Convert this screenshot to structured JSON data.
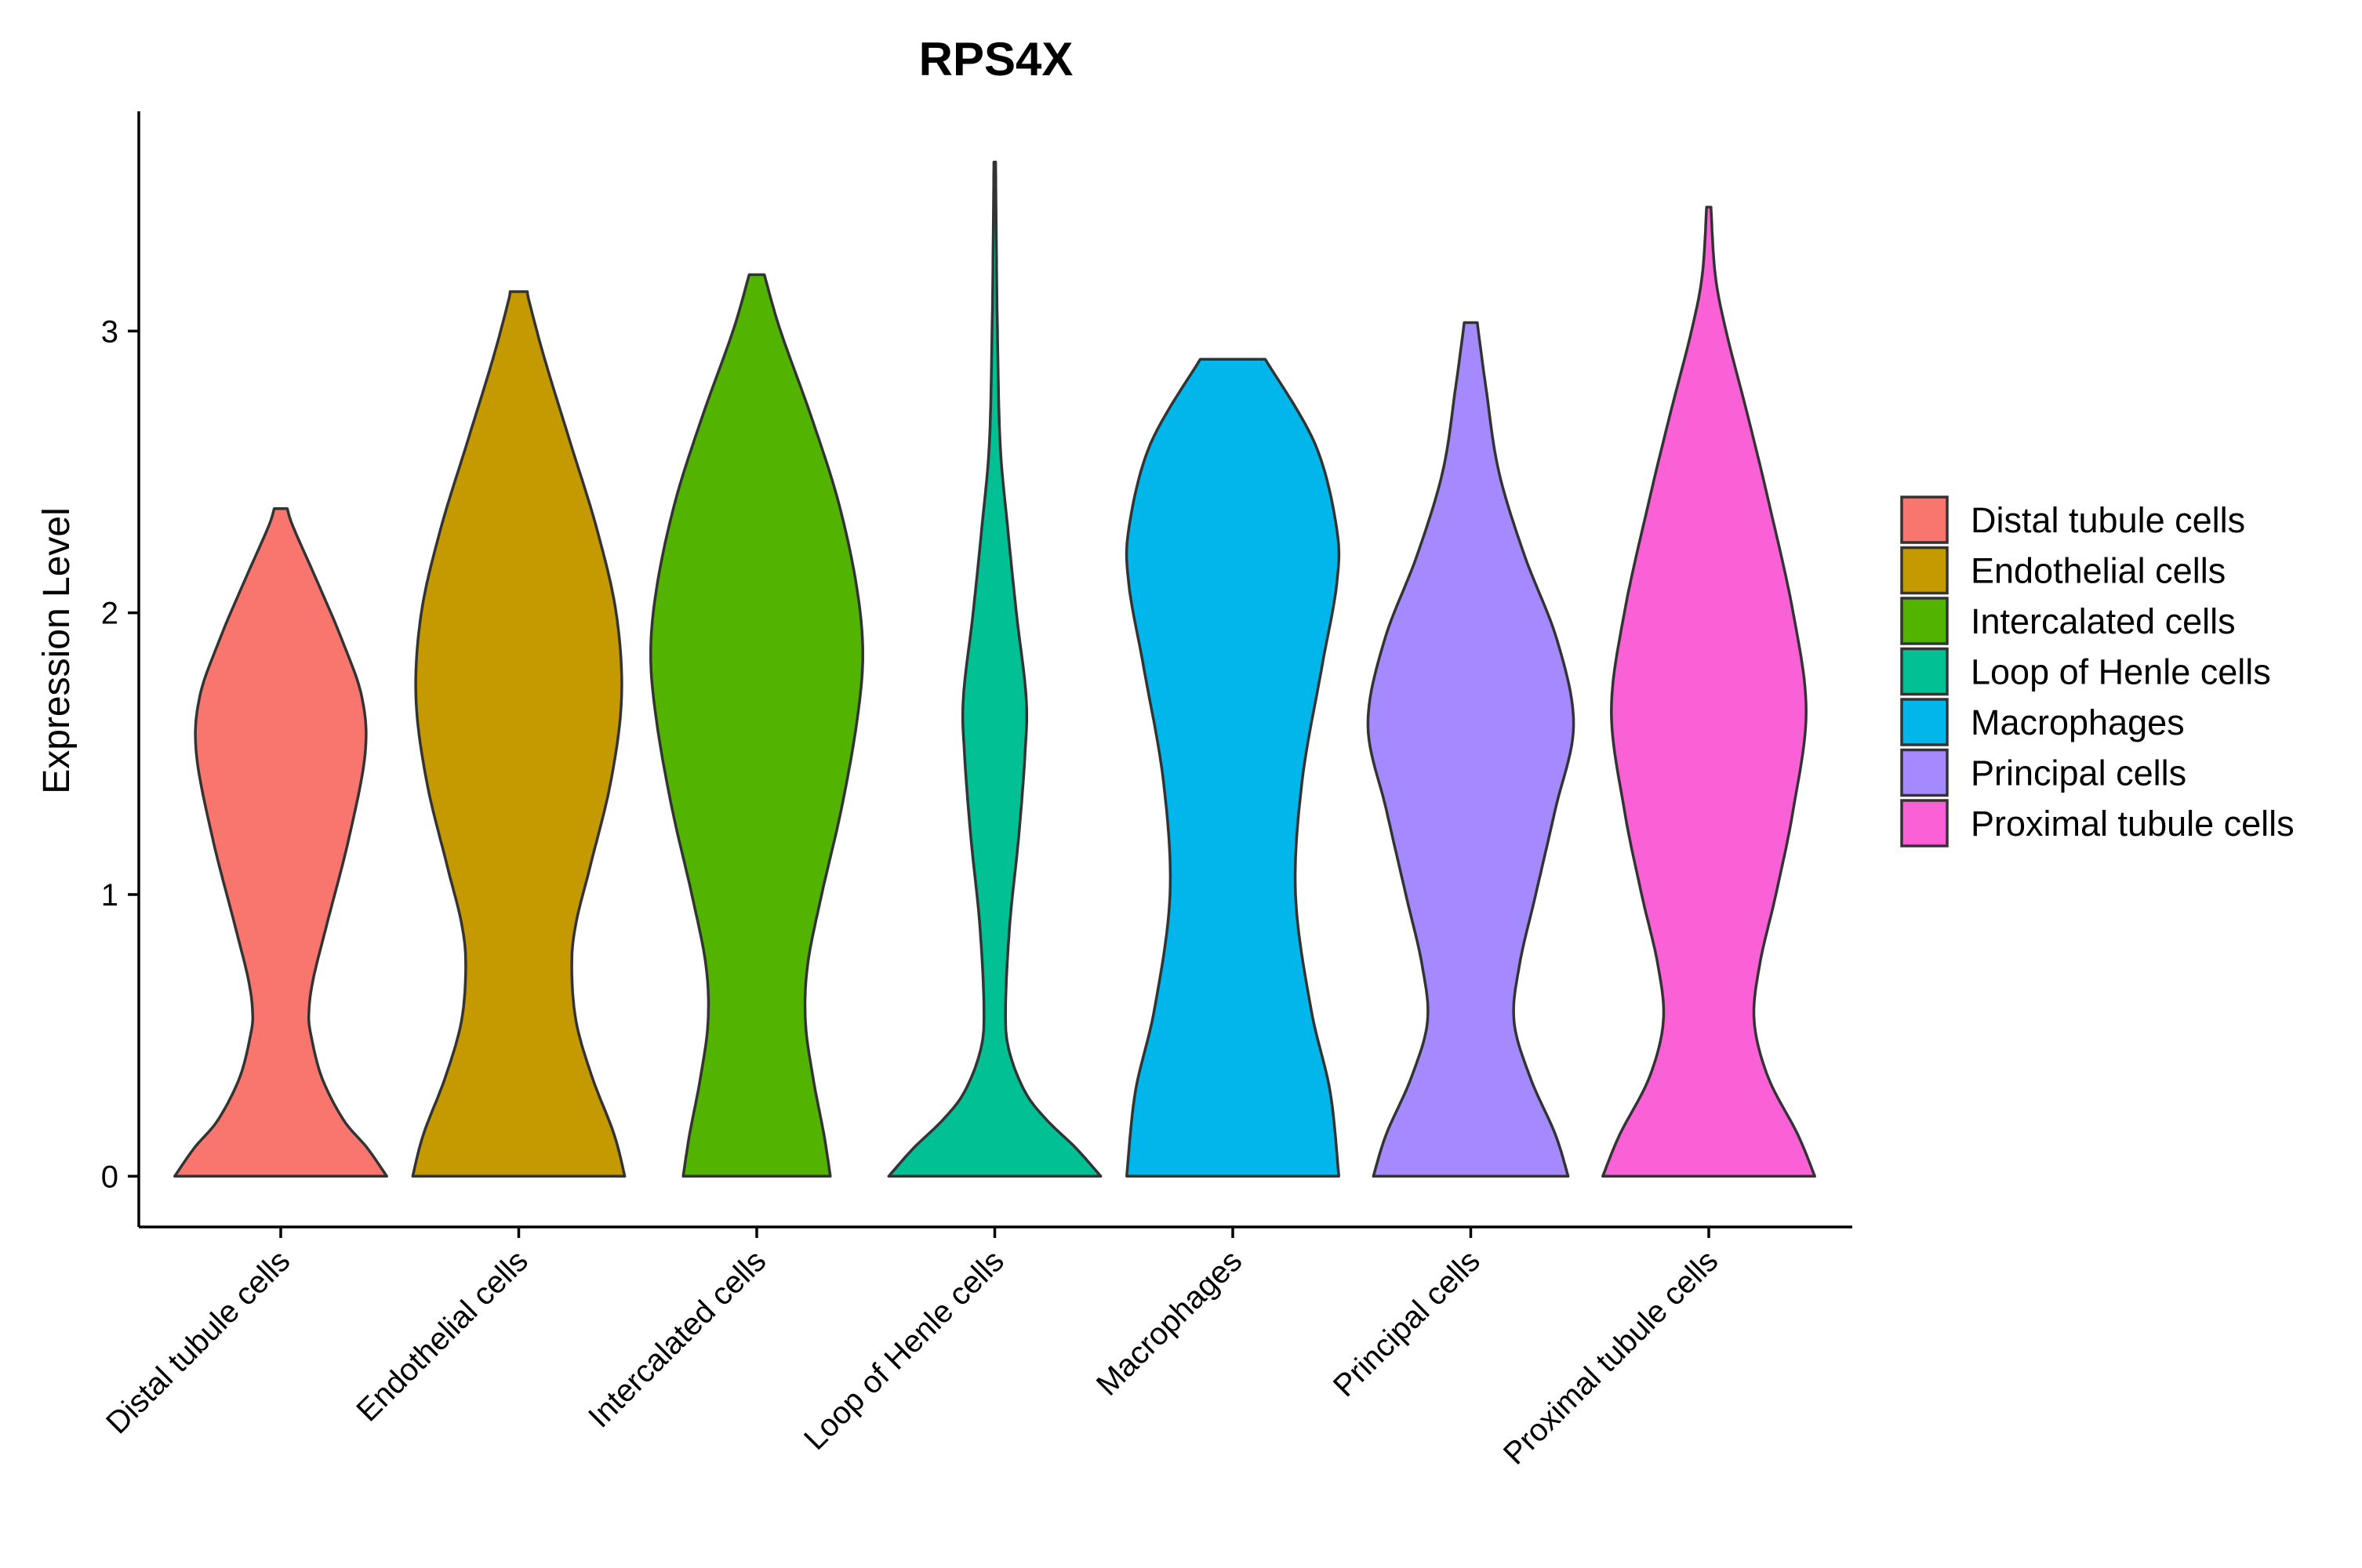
{
  "chart_data": {
    "type": "violin",
    "title": "RPS4X",
    "xlabel": "",
    "ylabel": "Expression Level",
    "ylim": [
      -0.18,
      3.78
    ],
    "yticks": [
      0,
      1,
      2,
      3
    ],
    "ytick_labels": [
      "0",
      "1",
      "2",
      "3"
    ],
    "legend_position": "right",
    "categories": [
      "Distal tubule cells",
      "Endothelial cells",
      "Intercalated cells",
      "Loop of Henle cells",
      "Macrophages",
      "Principal cells",
      "Proximal tubule cells"
    ],
    "colors": [
      "#F8766D",
      "#C49A00",
      "#53B400",
      "#00C094",
      "#00B6EB",
      "#A58AFF",
      "#FB61D7"
    ],
    "max_values": [
      2.37,
      3.14,
      3.2,
      3.6,
      2.9,
      3.03,
      3.44
    ],
    "series": [
      {
        "name": "Distal tubule cells",
        "profile": [
          [
            0.0,
            0.98
          ],
          [
            0.1,
            0.8
          ],
          [
            0.2,
            0.58
          ],
          [
            0.35,
            0.38
          ],
          [
            0.5,
            0.28
          ],
          [
            0.58,
            0.26
          ],
          [
            0.7,
            0.3
          ],
          [
            0.9,
            0.43
          ],
          [
            1.2,
            0.63
          ],
          [
            1.5,
            0.78
          ],
          [
            1.7,
            0.75
          ],
          [
            1.9,
            0.57
          ],
          [
            2.1,
            0.35
          ],
          [
            2.3,
            0.12
          ],
          [
            2.37,
            0.06
          ]
        ]
      },
      {
        "name": "Endothelial cells",
        "profile": [
          [
            0.0,
            0.98
          ],
          [
            0.15,
            0.88
          ],
          [
            0.35,
            0.68
          ],
          [
            0.55,
            0.53
          ],
          [
            0.75,
            0.49
          ],
          [
            0.9,
            0.53
          ],
          [
            1.1,
            0.66
          ],
          [
            1.4,
            0.85
          ],
          [
            1.7,
            0.95
          ],
          [
            2.0,
            0.9
          ],
          [
            2.3,
            0.72
          ],
          [
            2.6,
            0.48
          ],
          [
            2.9,
            0.24
          ],
          [
            3.1,
            0.1
          ],
          [
            3.14,
            0.08
          ]
        ]
      },
      {
        "name": "Intercalated cells",
        "profile": [
          [
            0.0,
            0.68
          ],
          [
            0.15,
            0.62
          ],
          [
            0.35,
            0.52
          ],
          [
            0.55,
            0.45
          ],
          [
            0.75,
            0.47
          ],
          [
            1.0,
            0.6
          ],
          [
            1.3,
            0.78
          ],
          [
            1.6,
            0.92
          ],
          [
            1.85,
            0.98
          ],
          [
            2.1,
            0.92
          ],
          [
            2.4,
            0.75
          ],
          [
            2.7,
            0.5
          ],
          [
            3.0,
            0.22
          ],
          [
            3.2,
            0.07
          ]
        ]
      },
      {
        "name": "Loop of Henle cells",
        "profile": [
          [
            0.0,
            0.98
          ],
          [
            0.1,
            0.75
          ],
          [
            0.2,
            0.48
          ],
          [
            0.3,
            0.28
          ],
          [
            0.45,
            0.13
          ],
          [
            0.6,
            0.1
          ],
          [
            0.9,
            0.14
          ],
          [
            1.2,
            0.22
          ],
          [
            1.5,
            0.28
          ],
          [
            1.7,
            0.29
          ],
          [
            2.0,
            0.2
          ],
          [
            2.3,
            0.12
          ],
          [
            2.6,
            0.05
          ],
          [
            3.0,
            0.025
          ],
          [
            3.3,
            0.015
          ],
          [
            3.6,
            0.008
          ]
        ]
      },
      {
        "name": "Macrophages",
        "profile": [
          [
            0.0,
            0.98
          ],
          [
            0.3,
            0.9
          ],
          [
            0.6,
            0.72
          ],
          [
            1.0,
            0.58
          ],
          [
            1.4,
            0.64
          ],
          [
            1.8,
            0.82
          ],
          [
            2.1,
            0.96
          ],
          [
            2.3,
            0.96
          ],
          [
            2.6,
            0.76
          ],
          [
            2.9,
            0.3
          ]
        ]
      },
      {
        "name": "Principal cells",
        "profile": [
          [
            0.0,
            0.9
          ],
          [
            0.15,
            0.78
          ],
          [
            0.35,
            0.55
          ],
          [
            0.55,
            0.4
          ],
          [
            0.75,
            0.45
          ],
          [
            1.0,
            0.6
          ],
          [
            1.3,
            0.78
          ],
          [
            1.6,
            0.95
          ],
          [
            1.9,
            0.8
          ],
          [
            2.2,
            0.5
          ],
          [
            2.5,
            0.26
          ],
          [
            2.8,
            0.14
          ],
          [
            3.03,
            0.06
          ]
        ]
      },
      {
        "name": "Proximal tubule cells",
        "profile": [
          [
            0.0,
            0.98
          ],
          [
            0.15,
            0.82
          ],
          [
            0.35,
            0.55
          ],
          [
            0.55,
            0.42
          ],
          [
            0.75,
            0.47
          ],
          [
            1.0,
            0.62
          ],
          [
            1.3,
            0.78
          ],
          [
            1.65,
            0.9
          ],
          [
            2.0,
            0.78
          ],
          [
            2.4,
            0.55
          ],
          [
            2.7,
            0.36
          ],
          [
            3.0,
            0.16
          ],
          [
            3.2,
            0.06
          ],
          [
            3.44,
            0.02
          ]
        ]
      }
    ]
  }
}
